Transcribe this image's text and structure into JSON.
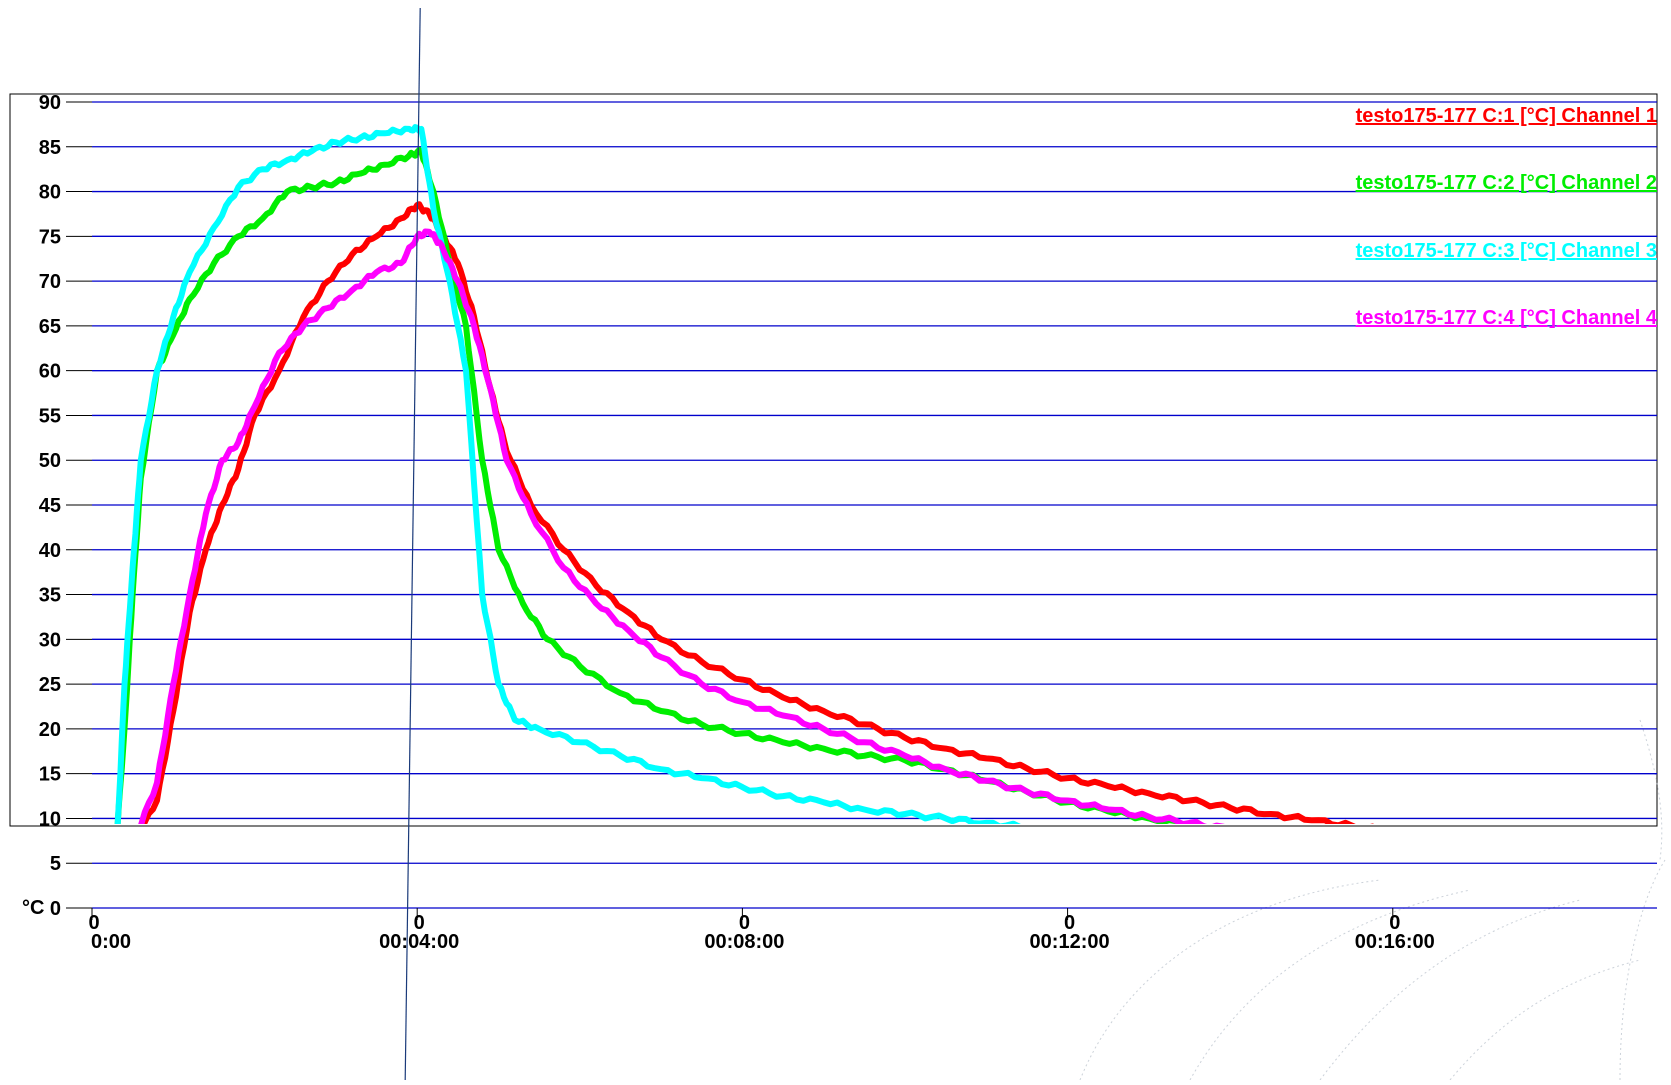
{
  "chart_data": {
    "type": "line",
    "ylabel": "°C",
    "ylim": [
      0,
      90
    ],
    "yticks": [
      "0",
      "5",
      "10",
      "15",
      "20",
      "25",
      "30",
      "35",
      "40",
      "45",
      "50",
      "55",
      "60",
      "65",
      "70",
      "75",
      "80",
      "85",
      "90"
    ],
    "xlim": [
      0,
      19.25
    ],
    "xtick_values": [
      0,
      4,
      8,
      12,
      16
    ],
    "xtick_top": [
      "0",
      "0",
      "0",
      "0",
      "0"
    ],
    "xtick_bottom": [
      "0:00",
      "00:04:00",
      "00:08:00",
      "00:12:00",
      "00:16:00"
    ],
    "cursor_x": 4,
    "grid": "horizontal",
    "legend_position": "top-right",
    "series": [
      {
        "name": "testo175-177 C:1 [°C] Channel 1",
        "color": "#ff0000",
        "x": [
          0,
          0.2,
          0.5,
          0.8,
          1.0,
          1.2,
          1.4,
          1.6,
          1.8,
          2.0,
          2.3,
          2.6,
          2.9,
          3.2,
          3.5,
          3.8,
          4.0,
          4.15,
          4.3,
          4.5,
          4.7,
          4.9,
          5.1,
          5.4,
          5.8,
          6.2,
          6.6,
          7.0,
          7.5,
          8.0,
          8.5,
          9.0,
          9.5,
          10.0,
          10.5,
          11.0,
          11.5,
          12.0,
          12.5,
          13.0,
          13.5,
          14.0,
          14.5,
          15.0,
          15.5,
          16.0,
          16.5,
          17.0,
          17.5,
          18.0,
          18.5,
          19.25
        ],
        "y": [
          6,
          6,
          7,
          12,
          22,
          33,
          40,
          45,
          49,
          55,
          60,
          66,
          70,
          73,
          75,
          77,
          78.5,
          77.5,
          75.5,
          72,
          66,
          58,
          51,
          45,
          40,
          36,
          33,
          30,
          27.5,
          25.5,
          23.5,
          22,
          20.5,
          19,
          17.8,
          16.7,
          15.6,
          14.5,
          13.6,
          12.8,
          12,
          11.2,
          10.5,
          9.8,
          9.2,
          8.5,
          7.8,
          7.2,
          6.6,
          6,
          5.5,
          4.8
        ]
      },
      {
        "name": "testo175-177 C:2 [°C] Channel 2",
        "color": "#00ee00",
        "x": [
          0,
          0.2,
          0.3,
          0.4,
          0.5,
          0.6,
          0.8,
          1.0,
          1.2,
          1.5,
          1.8,
          2.1,
          2.4,
          2.7,
          3.0,
          3.3,
          3.6,
          3.9,
          4.05,
          4.2,
          4.4,
          4.6,
          4.8,
          5.0,
          5.3,
          5.6,
          6.0,
          6.5,
          7.0,
          7.5,
          8.0,
          8.5,
          9.0,
          9.5,
          10.0,
          10.5,
          11.0,
          11.5,
          12.0,
          12.5,
          13.0,
          13.5,
          14.0,
          14.5,
          15.0,
          15.5,
          16.0,
          16.5,
          17.0,
          17.5,
          18.0,
          18.5,
          19.25
        ],
        "y": [
          7,
          7,
          7.5,
          20,
          35,
          48,
          60,
          64,
          68,
          72,
          75,
          77,
          80,
          80.5,
          81,
          82,
          83,
          84,
          84.5,
          80,
          72,
          65,
          50,
          40,
          34,
          30,
          27,
          24,
          22,
          20.5,
          19.5,
          18.5,
          17.8,
          17,
          16.5,
          15.5,
          14.2,
          13,
          11.8,
          10.8,
          10,
          9.3,
          8.7,
          8,
          7.5,
          7,
          6.5,
          6,
          5.6,
          5.2,
          4.8,
          4.4,
          4.2
        ]
      },
      {
        "name": "testo175-177 C:3 [°C] Channel 3",
        "color": "#00ffff",
        "x": [
          0,
          0.2,
          0.3,
          0.4,
          0.5,
          0.6,
          0.8,
          1.0,
          1.2,
          1.5,
          1.8,
          2.1,
          2.4,
          2.7,
          3.0,
          3.3,
          3.6,
          3.9,
          4.05,
          4.2,
          4.4,
          4.6,
          4.8,
          5.0,
          5.2,
          5.5,
          6.0,
          6.5,
          7.0,
          7.5,
          8.0,
          8.5,
          9.0,
          9.5,
          10.0,
          10.5,
          11.0,
          11.5,
          12.0,
          12.5,
          13.0,
          13.5,
          14.0,
          14.5,
          15.0,
          15.5,
          16.0,
          16.5,
          17.0,
          17.5,
          18.0,
          18.5,
          19.25
        ],
        "y": [
          5.5,
          5.5,
          6,
          25,
          38,
          50,
          60,
          66,
          71,
          76,
          80.5,
          82.5,
          83.5,
          84.5,
          85.5,
          86,
          86.5,
          87,
          87,
          78,
          70,
          60,
          35,
          25,
          21,
          20,
          18.5,
          17,
          15.5,
          14.5,
          13.5,
          12.5,
          11.8,
          11,
          10.5,
          10,
          9.5,
          9,
          8.5,
          8.1,
          7.7,
          7.3,
          7,
          6.6,
          6.3,
          6,
          5.6,
          5.3,
          5,
          4.7,
          4.4,
          4.1,
          3.8
        ]
      },
      {
        "name": "testo175-177 C:4 [°C] Channel 4",
        "color": "#ff00ff",
        "x": [
          0,
          0.2,
          0.5,
          0.8,
          1.0,
          1.2,
          1.4,
          1.6,
          1.8,
          2.0,
          2.3,
          2.6,
          2.9,
          3.2,
          3.5,
          3.8,
          4.0,
          4.15,
          4.3,
          4.5,
          4.7,
          4.9,
          5.1,
          5.4,
          5.8,
          6.2,
          6.6,
          7.0,
          7.5,
          8.0,
          8.5,
          9.0,
          9.5,
          10.0,
          10.5,
          11.0,
          11.5,
          12.0,
          12.5,
          13.0,
          13.5,
          14.0,
          14.5,
          15.0,
          15.5,
          16.0,
          16.5,
          17.0,
          17.5,
          18.0,
          18.5,
          19.25
        ],
        "y": [
          5,
          5,
          7,
          14,
          25,
          35,
          44,
          50,
          52,
          56,
          62,
          65,
          67,
          69,
          71,
          72,
          75,
          75.5,
          74,
          70,
          65,
          58,
          50,
          44,
          38,
          34,
          31,
          28,
          25,
          23,
          21.5,
          20,
          18.5,
          17,
          15.5,
          14.2,
          13,
          12,
          11,
          10.2,
          9.5,
          8.8,
          8.2,
          7.6,
          7.1,
          6.7,
          6.3,
          5.9,
          5.5,
          5.2,
          4.9,
          4.5
        ]
      }
    ]
  }
}
